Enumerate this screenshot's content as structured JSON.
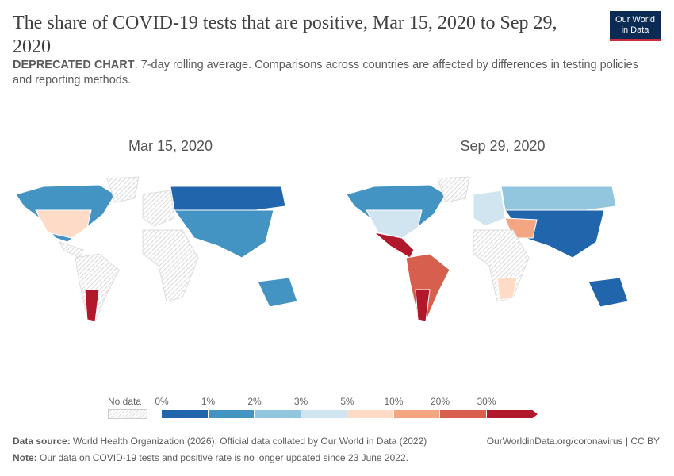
{
  "header": {
    "title": "The share of COVID-19 tests that are positive, Mar 15, 2020 to Sep 29, 2020",
    "logo_line1": "Our World",
    "logo_line2": "in Data"
  },
  "subtitle": {
    "bold": "DEPRECATED CHART",
    "rest": ". 7-day rolling average. Comparisons across countries are affected by differences in testing policies and reporting methods."
  },
  "maps": [
    {
      "date": "Mar 15, 2020"
    },
    {
      "date": "Sep 29, 2020"
    }
  ],
  "legend": {
    "no_data": "No data",
    "ticks": [
      "0%",
      "1%",
      "2%",
      "3%",
      "5%",
      "10%",
      "20%",
      "30%"
    ],
    "colors": [
      "#2166ac",
      "#4393c3",
      "#92c5de",
      "#d1e5f0",
      "#fddbc7",
      "#f4a582",
      "#d6604d",
      "#b2182b"
    ]
  },
  "footer": {
    "source_label": "Data source:",
    "source": " World Health Organization (2026); Official data collated by Our World in Data (2022)",
    "link": "OurWorldinData.org/coronavirus | CC BY",
    "note_label": "Note:",
    "note": " Our data on COVID-19 tests and positive rate is no longer updated since 23 June 2022."
  }
}
